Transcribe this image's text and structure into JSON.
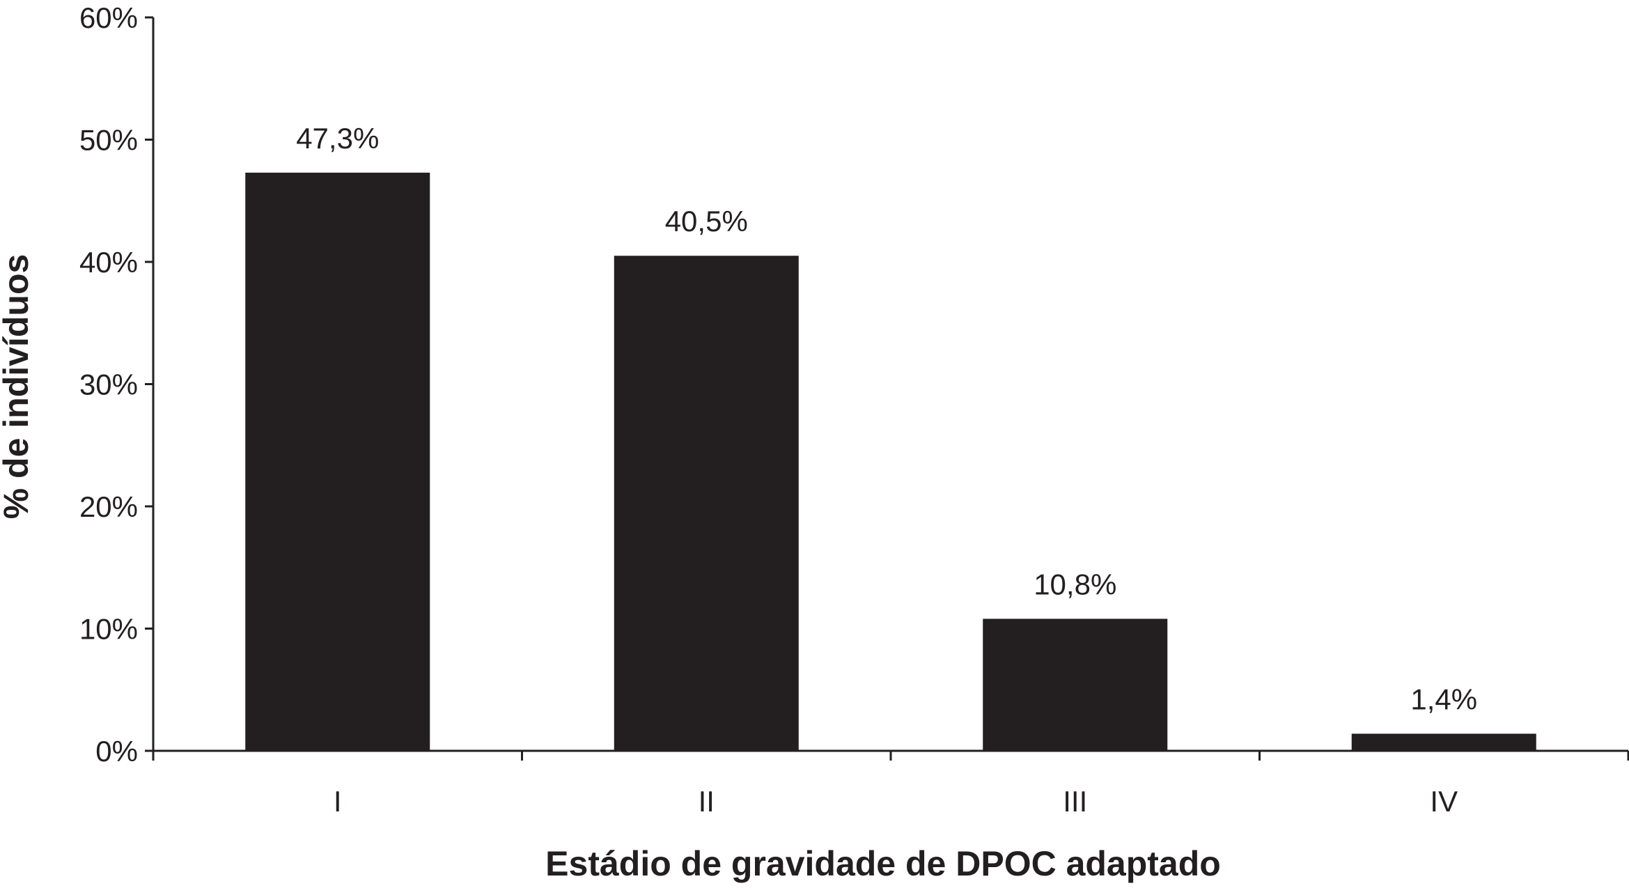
{
  "chart_data": {
    "type": "bar",
    "categories": [
      "I",
      "II",
      "III",
      "IV"
    ],
    "values": [
      47.3,
      40.5,
      10.8,
      1.4
    ],
    "data_labels": [
      "47,3%",
      "40,5%",
      "10,8%",
      "1,4%"
    ],
    "title": "",
    "xlabel": "Estádio de gravidade de DPOC adaptado",
    "ylabel": "% de indivíduos",
    "ylim": [
      0,
      60
    ],
    "y_ticks": [
      0,
      10,
      20,
      30,
      40,
      50,
      60
    ],
    "y_tick_labels": [
      "0%",
      "10%",
      "20%",
      "30%",
      "40%",
      "50%",
      "60%"
    ],
    "grid": false,
    "legend": "none",
    "colors": {
      "bar": "#231f20",
      "axis": "#231f20",
      "text": "#231f20",
      "background": "#ffffff"
    }
  }
}
